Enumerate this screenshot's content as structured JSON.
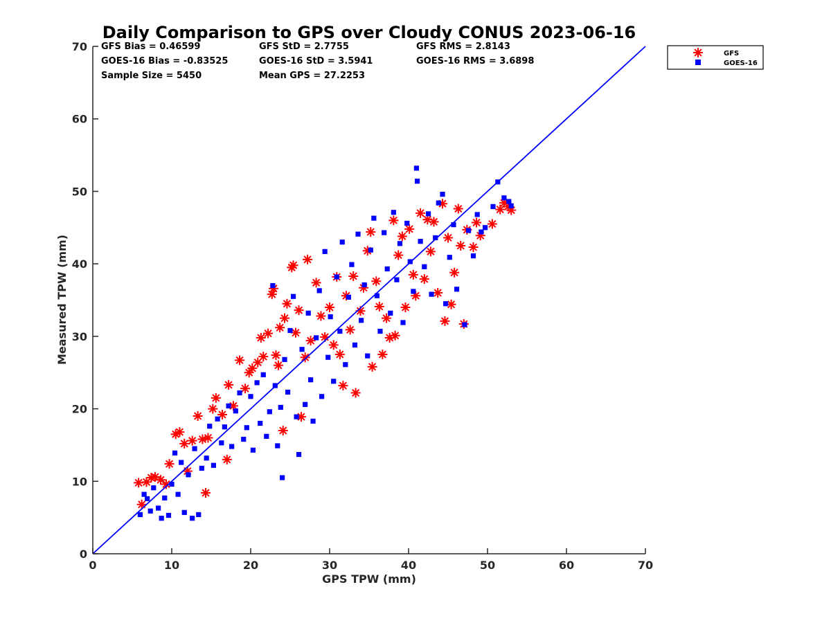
{
  "chart_data": {
    "type": "scatter",
    "title": "Daily Comparison to GPS over Cloudy CONUS 2023-06-16",
    "xlabel": "GPS TPW (mm)",
    "ylabel": "Measured TPW (mm)",
    "xlim": [
      0,
      70
    ],
    "ylim": [
      0,
      70
    ],
    "xticks": [
      "0",
      "10",
      "20",
      "30",
      "40",
      "50",
      "60",
      "70"
    ],
    "yticks": [
      "0",
      "10",
      "20",
      "30",
      "40",
      "50",
      "60",
      "70"
    ],
    "grid": false,
    "legend_position": "outside top-right",
    "reference_line": {
      "x": [
        0,
        70
      ],
      "y": [
        0,
        70
      ],
      "color": "#0000ff"
    },
    "stats": [
      "GFS Bias = 0.46599",
      "GFS StD = 2.7755",
      "GFS RMS = 2.8143",
      "GOES-16 Bias = -0.83525",
      "GOES-16 StD = 3.5941",
      "GOES-16 RMS = 3.6898",
      "Sample Size = 5450",
      "Mean GPS = 27.2253"
    ],
    "series": [
      {
        "name": "GFS",
        "marker": "asterisk",
        "color": "#ff0000",
        "points": [
          [
            5.8,
            9.8
          ],
          [
            6.2,
            6.8
          ],
          [
            6.8,
            9.9
          ],
          [
            7.4,
            10.5
          ],
          [
            7.9,
            10.6
          ],
          [
            8.6,
            10.2
          ],
          [
            9.3,
            9.6
          ],
          [
            9.7,
            12.4
          ],
          [
            10.5,
            16.5
          ],
          [
            11.0,
            16.8
          ],
          [
            11.6,
            15.2
          ],
          [
            12.0,
            11.4
          ],
          [
            12.6,
            15.6
          ],
          [
            13.3,
            19.0
          ],
          [
            13.9,
            15.8
          ],
          [
            14.3,
            8.4
          ],
          [
            14.6,
            16.0
          ],
          [
            15.2,
            20.0
          ],
          [
            15.6,
            21.5
          ],
          [
            16.4,
            19.2
          ],
          [
            17.0,
            13.0
          ],
          [
            17.2,
            23.3
          ],
          [
            17.8,
            20.4
          ],
          [
            18.6,
            26.7
          ],
          [
            19.3,
            22.8
          ],
          [
            19.8,
            25.0
          ],
          [
            20.2,
            25.6
          ],
          [
            20.9,
            26.4
          ],
          [
            21.3,
            29.8
          ],
          [
            21.6,
            27.2
          ],
          [
            22.2,
            30.4
          ],
          [
            22.7,
            35.8
          ],
          [
            22.9,
            36.6
          ],
          [
            23.2,
            27.4
          ],
          [
            23.5,
            26.0
          ],
          [
            23.7,
            31.2
          ],
          [
            24.1,
            17.0
          ],
          [
            24.3,
            32.5
          ],
          [
            24.6,
            34.5
          ],
          [
            25.2,
            39.5
          ],
          [
            25.4,
            39.8
          ],
          [
            25.7,
            30.5
          ],
          [
            26.1,
            33.6
          ],
          [
            26.4,
            18.9
          ],
          [
            26.9,
            27.1
          ],
          [
            27.2,
            40.6
          ],
          [
            27.6,
            29.4
          ],
          [
            28.3,
            37.4
          ],
          [
            28.9,
            32.8
          ],
          [
            29.4,
            29.9
          ],
          [
            30.0,
            34.0
          ],
          [
            30.5,
            28.8
          ],
          [
            30.9,
            38.2
          ],
          [
            31.3,
            27.5
          ],
          [
            31.7,
            23.2
          ],
          [
            32.1,
            35.6
          ],
          [
            32.6,
            30.9
          ],
          [
            33.0,
            38.3
          ],
          [
            33.3,
            22.2
          ],
          [
            33.9,
            33.5
          ],
          [
            34.3,
            36.7
          ],
          [
            34.8,
            41.8
          ],
          [
            35.2,
            44.4
          ],
          [
            35.4,
            25.8
          ],
          [
            35.9,
            37.6
          ],
          [
            36.3,
            34.1
          ],
          [
            36.7,
            27.5
          ],
          [
            37.2,
            32.5
          ],
          [
            37.6,
            29.8
          ],
          [
            38.1,
            46.0
          ],
          [
            38.3,
            30.1
          ],
          [
            38.7,
            41.2
          ],
          [
            39.2,
            43.8
          ],
          [
            39.6,
            34.0
          ],
          [
            40.1,
            44.8
          ],
          [
            40.6,
            38.5
          ],
          [
            40.9,
            35.6
          ],
          [
            41.5,
            47.0
          ],
          [
            42.0,
            37.9
          ],
          [
            42.4,
            46.1
          ],
          [
            42.8,
            41.7
          ],
          [
            43.2,
            45.8
          ],
          [
            43.7,
            36.0
          ],
          [
            44.3,
            48.3
          ],
          [
            44.6,
            32.1
          ],
          [
            45.0,
            43.6
          ],
          [
            45.4,
            34.4
          ],
          [
            45.8,
            38.8
          ],
          [
            46.3,
            47.6
          ],
          [
            46.6,
            42.5
          ],
          [
            47.0,
            31.7
          ],
          [
            47.4,
            44.7
          ],
          [
            48.2,
            42.3
          ],
          [
            48.6,
            45.7
          ],
          [
            49.1,
            43.9
          ],
          [
            50.6,
            45.5
          ],
          [
            51.6,
            47.5
          ],
          [
            52.1,
            48.4
          ],
          [
            52.6,
            47.9
          ],
          [
            53.0,
            47.4
          ]
        ]
      },
      {
        "name": "GOES-16",
        "marker": "square",
        "color": "#0000ff",
        "points": [
          [
            6.0,
            5.4
          ],
          [
            6.5,
            8.2
          ],
          [
            6.9,
            7.6
          ],
          [
            7.3,
            5.9
          ],
          [
            7.7,
            9.1
          ],
          [
            8.3,
            6.3
          ],
          [
            8.7,
            4.9
          ],
          [
            9.1,
            7.7
          ],
          [
            9.6,
            5.3
          ],
          [
            10.0,
            9.6
          ],
          [
            10.4,
            13.9
          ],
          [
            10.8,
            8.2
          ],
          [
            11.2,
            12.6
          ],
          [
            11.6,
            5.7
          ],
          [
            12.1,
            10.9
          ],
          [
            12.6,
            4.9
          ],
          [
            12.9,
            14.5
          ],
          [
            13.4,
            5.4
          ],
          [
            13.8,
            11.8
          ],
          [
            14.4,
            13.2
          ],
          [
            14.8,
            17.6
          ],
          [
            15.3,
            12.2
          ],
          [
            15.8,
            18.6
          ],
          [
            16.3,
            15.3
          ],
          [
            16.7,
            17.5
          ],
          [
            17.2,
            20.4
          ],
          [
            17.6,
            14.8
          ],
          [
            18.1,
            19.7
          ],
          [
            18.6,
            22.2
          ],
          [
            19.1,
            15.8
          ],
          [
            19.5,
            17.4
          ],
          [
            20.0,
            21.7
          ],
          [
            20.3,
            14.3
          ],
          [
            20.8,
            23.6
          ],
          [
            21.2,
            18.0
          ],
          [
            21.6,
            24.7
          ],
          [
            22.0,
            16.2
          ],
          [
            22.4,
            19.6
          ],
          [
            22.8,
            37.0
          ],
          [
            23.1,
            23.2
          ],
          [
            23.4,
            14.9
          ],
          [
            23.8,
            20.2
          ],
          [
            24.0,
            10.5
          ],
          [
            24.3,
            26.8
          ],
          [
            24.7,
            22.3
          ],
          [
            25.0,
            30.8
          ],
          [
            25.4,
            35.5
          ],
          [
            25.8,
            18.9
          ],
          [
            26.1,
            13.7
          ],
          [
            26.5,
            28.2
          ],
          [
            26.9,
            20.6
          ],
          [
            27.3,
            33.2
          ],
          [
            27.6,
            24.0
          ],
          [
            27.9,
            18.3
          ],
          [
            28.3,
            29.8
          ],
          [
            28.7,
            36.3
          ],
          [
            29.0,
            21.7
          ],
          [
            29.4,
            41.7
          ],
          [
            29.8,
            27.1
          ],
          [
            30.1,
            32.7
          ],
          [
            30.5,
            23.8
          ],
          [
            30.9,
            38.2
          ],
          [
            31.3,
            30.7
          ],
          [
            31.6,
            43.0
          ],
          [
            32.0,
            26.1
          ],
          [
            32.4,
            35.4
          ],
          [
            32.8,
            39.9
          ],
          [
            33.2,
            28.8
          ],
          [
            33.6,
            44.1
          ],
          [
            34.0,
            32.2
          ],
          [
            34.4,
            37.1
          ],
          [
            34.8,
            27.3
          ],
          [
            35.2,
            41.9
          ],
          [
            35.6,
            46.3
          ],
          [
            36.0,
            35.6
          ],
          [
            36.4,
            30.7
          ],
          [
            36.9,
            44.3
          ],
          [
            37.3,
            39.3
          ],
          [
            37.7,
            33.2
          ],
          [
            38.1,
            47.1
          ],
          [
            38.5,
            37.8
          ],
          [
            38.9,
            42.8
          ],
          [
            39.3,
            31.9
          ],
          [
            39.8,
            45.6
          ],
          [
            40.2,
            40.3
          ],
          [
            40.6,
            36.2
          ],
          [
            41.0,
            53.2
          ],
          [
            41.1,
            51.4
          ],
          [
            41.5,
            43.1
          ],
          [
            42.0,
            39.6
          ],
          [
            42.5,
            46.9
          ],
          [
            42.9,
            35.8
          ],
          [
            43.4,
            43.6
          ],
          [
            43.8,
            48.4
          ],
          [
            44.3,
            49.6
          ],
          [
            44.7,
            34.5
          ],
          [
            45.2,
            40.9
          ],
          [
            45.7,
            45.4
          ],
          [
            46.1,
            36.5
          ],
          [
            47.1,
            31.6
          ],
          [
            47.6,
            44.6
          ],
          [
            48.2,
            41.1
          ],
          [
            48.7,
            46.8
          ],
          [
            49.2,
            44.4
          ],
          [
            49.7,
            45.0
          ],
          [
            50.7,
            47.9
          ],
          [
            51.3,
            51.3
          ],
          [
            52.1,
            49.1
          ],
          [
            52.7,
            48.6
          ],
          [
            53.0,
            48.0
          ]
        ]
      }
    ]
  }
}
